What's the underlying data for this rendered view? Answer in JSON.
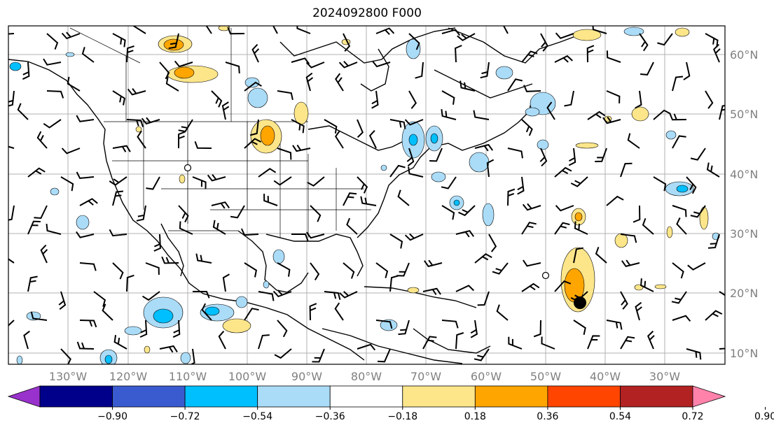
{
  "title": "2024092800 F000",
  "lon_labels": [
    "130°W",
    "120°W",
    "110°W",
    "100°W",
    "90°W",
    "80°W",
    "70°W",
    "60°W",
    "50°W",
    "40°W",
    "30°W"
  ],
  "lat_labels": [
    "60°N",
    "50°N",
    "40°N",
    "30°N",
    "20°N",
    "10°N"
  ],
  "colorbar": {
    "ticks": [
      "−0.90",
      "−0.72",
      "−0.54",
      "−0.36",
      "−0.18",
      "0.18",
      "0.36",
      "0.54",
      "0.72",
      "0.90"
    ],
    "colors": [
      "#9932cc",
      "#00008b",
      "#3a5bd0",
      "#00bfff",
      "#aadcf8",
      "#ffffff",
      "#fde68a",
      "#ffa500",
      "#ff4500",
      "#b22222",
      "#ff82ab"
    ]
  },
  "legend_colors": {
    "land": "#ffffff",
    "grid": "#b0b0b0",
    "coast": "#000000"
  }
}
